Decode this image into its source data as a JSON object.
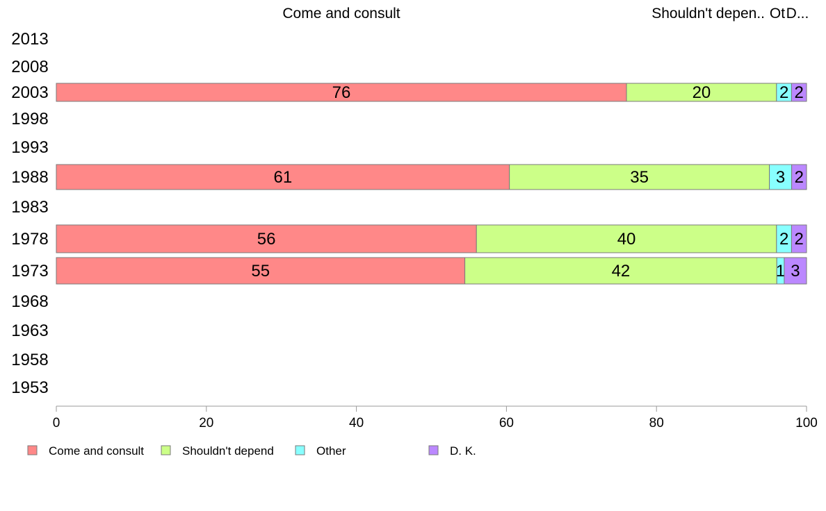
{
  "chart_data": {
    "type": "bar",
    "orientation": "horizontal",
    "stacked": true,
    "categories": [
      "2013",
      "2008",
      "2003",
      "1998",
      "1993",
      "1988",
      "1983",
      "1978",
      "1973",
      "1968",
      "1963",
      "1958",
      "1953"
    ],
    "series": [
      {
        "name": "Come and consult",
        "color": "#ff8888",
        "values": [
          null,
          null,
          76,
          null,
          null,
          61,
          null,
          56,
          55,
          null,
          null,
          null,
          null
        ]
      },
      {
        "name": "Shouldn't depend",
        "color": "#ccff88",
        "values": [
          null,
          null,
          20,
          null,
          null,
          35,
          null,
          40,
          42,
          null,
          null,
          null,
          null
        ]
      },
      {
        "name": "Other",
        "color": "#88ffff",
        "values": [
          null,
          null,
          2,
          null,
          null,
          3,
          null,
          2,
          1,
          null,
          null,
          null,
          null
        ]
      },
      {
        "name": "D. K.",
        "color": "#bb88ff",
        "values": [
          null,
          null,
          2,
          null,
          null,
          2,
          null,
          2,
          3,
          null,
          null,
          null,
          null
        ]
      }
    ],
    "top_labels": [
      "Come and consult",
      "Shouldn't depen..",
      "Ot",
      "D..."
    ],
    "xlim": [
      0,
      100
    ],
    "xticks": [
      0,
      20,
      40,
      60,
      80,
      100
    ],
    "xlabel": "",
    "ylabel": "",
    "grid": false,
    "legend_position": "bottom-left"
  }
}
